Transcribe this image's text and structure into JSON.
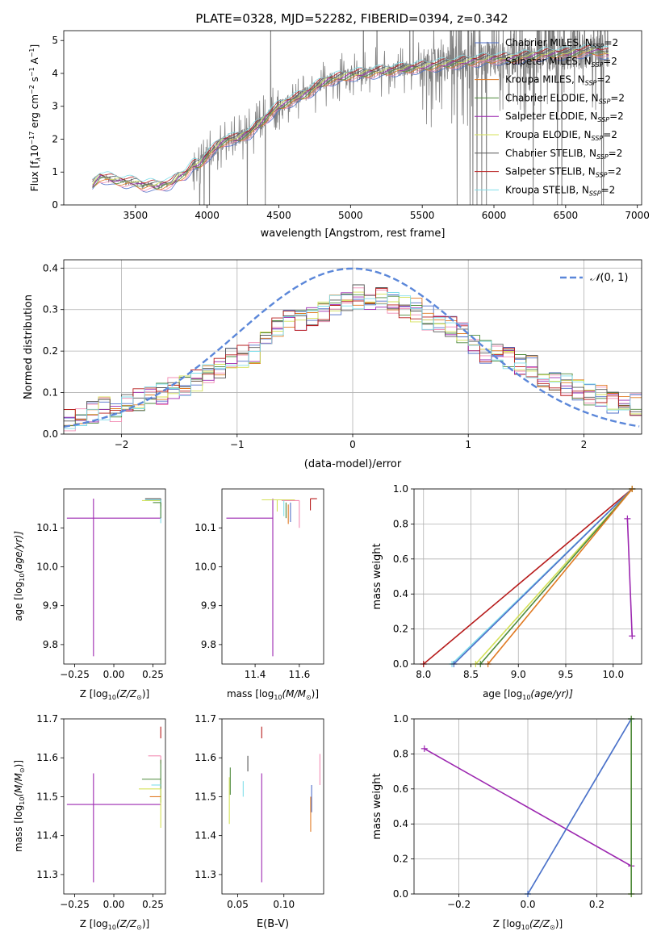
{
  "figure": {
    "title": "PLATE=0328, MJD=52282, FIBERID=0394, z=0.342"
  },
  "colors": {
    "Chabrier MILES": "#4f6fc9",
    "Salpeter MILES": "#f28cb3",
    "Kroupa MILES": "#e07a22",
    "Chabrier ELODIE": "#4e8a3c",
    "Salpeter ELODIE": "#9c27b0",
    "Kroupa ELODIE": "#d4e157",
    "Chabrier STELIB": "#555555",
    "Salpeter STELIB": "#b71c1c",
    "Kroupa STELIB": "#80deea",
    "data": "#808080",
    "gaussian": "#5b87d9"
  },
  "chart_data": [
    {
      "id": "spectrum",
      "type": "line",
      "xlabel": "wavelength [Angstrom, rest frame]",
      "ylabel": "Flux [f",
      "xlim": [
        3000,
        7030
      ],
      "ylim": [
        0,
        5.3
      ],
      "xticks": [
        3500,
        4000,
        4500,
        5000,
        5500,
        6000,
        6500,
        7000
      ],
      "yticks": [
        0,
        1,
        2,
        3,
        4,
        5
      ],
      "grid": false,
      "legend_position": "top-right",
      "series": [
        {
          "name": "Chabrier MILES, N",
          "sub": "SSP",
          "sup": "=2"
        },
        {
          "name": "Salpeter MILES, N",
          "sub": "SSP",
          "sup": "=2"
        },
        {
          "name": "Kroupa MILES, N",
          "sub": "SSP",
          "sup": "=2"
        },
        {
          "name": "Chabrier ELODIE, N",
          "sub": "SSP",
          "sup": "=2"
        },
        {
          "name": "Salpeter ELODIE, N",
          "sub": "SSP",
          "sup": "=2"
        },
        {
          "name": "Kroupa ELODIE, N",
          "sub": "SSP",
          "sup": "=2"
        },
        {
          "name": "Chabrier STELIB, N",
          "sub": "SSP",
          "sup": "=2"
        },
        {
          "name": "Salpeter STELIB, N",
          "sub": "SSP",
          "sup": "=2"
        },
        {
          "name": "Kroupa STELIB, N",
          "sub": "SSP",
          "sup": "=2"
        }
      ],
      "continuum": {
        "x": [
          3200,
          3250,
          3300,
          3350,
          3400,
          3450,
          3500,
          3550,
          3600,
          3650,
          3700,
          3750,
          3800,
          3850,
          3900,
          3950,
          4000,
          4050,
          4100,
          4150,
          4200,
          4250,
          4300,
          4350,
          4400,
          4450,
          4500,
          4550,
          4600,
          4650,
          4700,
          4750,
          4800,
          4850,
          4900,
          4950,
          5000,
          5100,
          5200,
          5300,
          5400,
          5500,
          5600,
          5700,
          5800,
          5900,
          6000,
          6100,
          6200,
          6300,
          6400,
          6500,
          6600,
          6700,
          6800
        ],
        "y": [
          0.6,
          0.85,
          0.82,
          0.75,
          0.72,
          0.7,
          0.68,
          0.6,
          0.6,
          0.58,
          0.62,
          0.65,
          0.85,
          0.95,
          1.2,
          1.25,
          1.5,
          1.7,
          1.9,
          2.0,
          2.0,
          2.1,
          2.2,
          2.4,
          2.6,
          2.8,
          3.0,
          3.1,
          3.2,
          3.3,
          3.4,
          3.55,
          3.7,
          3.8,
          3.85,
          3.9,
          3.95,
          4.0,
          4.05,
          4.1,
          4.15,
          4.2,
          4.25,
          4.3,
          4.35,
          4.4,
          4.45,
          4.45,
          4.5,
          4.55,
          4.6,
          4.6,
          4.65,
          4.7,
          4.6
        ]
      }
    },
    {
      "id": "residuals",
      "type": "step",
      "xlabel": "(data-model)/error",
      "ylabel": "Normed distribution",
      "xlim": [
        -2.5,
        2.5
      ],
      "ylim": [
        0,
        0.42
      ],
      "xticks": [
        -2,
        -1,
        0,
        1,
        2
      ],
      "yticks": [
        0.0,
        0.1,
        0.2,
        0.3,
        0.4
      ],
      "grid": true,
      "legend_position": "top-right",
      "gaussian_label": "(0, 1)",
      "approx_hist": {
        "bins": [
          -2.5,
          -2.4,
          -2.3,
          -2.2,
          -2.1,
          -2.0,
          -1.9,
          -1.8,
          -1.7,
          -1.6,
          -1.5,
          -1.4,
          -1.3,
          -1.2,
          -1.1,
          -1.0,
          -0.9,
          -0.8,
          -0.7,
          -0.6,
          -0.5,
          -0.4,
          -0.3,
          -0.2,
          -0.1,
          0.0,
          0.1,
          0.2,
          0.3,
          0.4,
          0.5,
          0.6,
          0.7,
          0.8,
          0.9,
          1.0,
          1.1,
          1.2,
          1.3,
          1.4,
          1.5,
          1.6,
          1.7,
          1.8,
          1.9,
          2.0,
          2.1,
          2.2,
          2.3,
          2.4
        ],
        "values": [
          0.03,
          0.035,
          0.05,
          0.06,
          0.055,
          0.07,
          0.08,
          0.09,
          0.1,
          0.11,
          0.12,
          0.13,
          0.15,
          0.16,
          0.18,
          0.19,
          0.2,
          0.24,
          0.26,
          0.27,
          0.28,
          0.29,
          0.3,
          0.31,
          0.32,
          0.33,
          0.32,
          0.33,
          0.32,
          0.31,
          0.3,
          0.28,
          0.27,
          0.26,
          0.24,
          0.22,
          0.2,
          0.19,
          0.18,
          0.17,
          0.16,
          0.14,
          0.13,
          0.12,
          0.11,
          0.1,
          0.09,
          0.08,
          0.07,
          0.07
        ]
      }
    },
    {
      "id": "age-vs-Z",
      "type": "errorbar",
      "xlabel": "Z [log",
      "ylabel": "age  [log",
      "xlim": [
        -0.32,
        0.33
      ],
      "ylim": [
        9.75,
        10.2
      ],
      "xticks": [
        -0.25,
        0.0,
        0.25
      ],
      "yticks": [
        9.8,
        9.9,
        10.0,
        10.1
      ],
      "points": [
        {
          "model": "Salpeter ELODIE",
          "x": -0.13,
          "xerr": [
            0.17,
            0.43
          ],
          "y": 10.125,
          "yerr": [
            0.355,
            0.05
          ]
        },
        {
          "model": "Kroupa ELODIE",
          "x": 0.3,
          "xerr": [
            0.12,
            0.0
          ],
          "y": 10.17,
          "yerr": [
            0.02,
            0.0
          ]
        },
        {
          "model": "Chabrier STELIB",
          "x": 0.3,
          "xerr": [
            0.1,
            0.0
          ],
          "y": 10.175,
          "yerr": [
            0.02,
            0.0
          ]
        },
        {
          "model": "Kroupa STELIB",
          "x": 0.3,
          "xerr": [
            0.1,
            0.0
          ],
          "y": 10.172,
          "yerr": [
            0.06,
            0.0
          ]
        },
        {
          "model": "Chabrier ELODIE",
          "x": 0.3,
          "xerr": [
            0.05,
            0.0
          ],
          "y": 10.165,
          "yerr": [
            0.04,
            0.0
          ]
        }
      ]
    },
    {
      "id": "age-vs-mass",
      "type": "errorbar",
      "xlabel": "mass [log",
      "ylabel": "",
      "xlim": [
        11.25,
        11.71
      ],
      "ylim": [
        9.75,
        10.2
      ],
      "xticks": [
        11.4,
        11.6
      ],
      "yticks": [
        9.8,
        9.9,
        10.0,
        10.1
      ],
      "points": [
        {
          "model": "Salpeter ELODIE",
          "x": 11.48,
          "xerr": [
            0.21,
            0.0
          ],
          "y": 10.125,
          "yerr": [
            0.355,
            0.05
          ]
        },
        {
          "model": "Kroupa ELODIE",
          "x": 11.5,
          "xerr": [
            0.07,
            0.08
          ],
          "y": 10.172,
          "yerr": [
            0.03,
            0.0
          ]
        },
        {
          "model": "Salpeter STELIB",
          "x": 11.65,
          "xerr": [
            0.0,
            0.03
          ],
          "y": 10.175,
          "yerr": [
            0.03,
            0.0
          ]
        },
        {
          "model": "Salpeter MILES",
          "x": 11.6,
          "xerr": [
            0.08,
            0.0
          ],
          "y": 10.17,
          "yerr": [
            0.07,
            0.0
          ]
        },
        {
          "model": "Kroupa MILES",
          "x": 11.55,
          "xerr": [
            0.0,
            0.0
          ],
          "y": 10.16,
          "yerr": [
            0.05,
            0.0
          ]
        },
        {
          "model": "Chabrier MILES",
          "x": 11.56,
          "xerr": [
            0.0,
            0.0
          ],
          "y": 10.165,
          "yerr": [
            0.05,
            0.0
          ]
        },
        {
          "model": "Kroupa STELIB",
          "x": 11.53,
          "xerr": [
            0.0,
            0.0
          ],
          "y": 10.17,
          "yerr": [
            0.04,
            0.0
          ]
        },
        {
          "model": "Chabrier ELODIE",
          "x": 11.54,
          "xerr": [
            0.0,
            0.0
          ],
          "y": 10.165,
          "yerr": [
            0.04,
            0.0
          ]
        }
      ]
    },
    {
      "id": "weight-vs-age",
      "type": "line",
      "xlabel": "age  [log",
      "ylabel": "mass weight",
      "xlim": [
        7.9,
        10.3
      ],
      "ylim": [
        0.0,
        1.0
      ],
      "xticks": [
        8.0,
        8.5,
        9.0,
        9.5,
        10.0
      ],
      "yticks": [
        0.0,
        0.2,
        0.4,
        0.6,
        0.8,
        1.0
      ],
      "grid": true,
      "series": [
        {
          "model": "Salpeter STELIB",
          "x": [
            8.0,
            10.2
          ],
          "y": [
            0.0,
            1.0
          ]
        },
        {
          "model": "Kroupa STELIB",
          "x": [
            8.3,
            10.2
          ],
          "y": [
            0.0,
            1.0
          ]
        },
        {
          "model": "Chabrier MILES",
          "x": [
            8.32,
            10.2
          ],
          "y": [
            0.0,
            1.0
          ]
        },
        {
          "model": "Kroupa ELODIE",
          "x": [
            8.55,
            10.2
          ],
          "y": [
            0.0,
            1.0
          ]
        },
        {
          "model": "Chabrier ELODIE",
          "x": [
            8.6,
            10.2
          ],
          "y": [
            0.0,
            1.0
          ]
        },
        {
          "model": "Kroupa MILES",
          "x": [
            8.68,
            10.2
          ],
          "y": [
            0.0,
            1.0
          ]
        },
        {
          "model": "Salpeter ELODIE",
          "x": [
            10.15,
            10.2
          ],
          "y": [
            0.83,
            0.16
          ]
        }
      ]
    },
    {
      "id": "mass-vs-Z",
      "type": "errorbar",
      "xlabel": "Z [log",
      "ylabel": "mass [log",
      "xlim": [
        -0.32,
        0.33
      ],
      "ylim": [
        11.25,
        11.7
      ],
      "xticks": [
        -0.25,
        0.0,
        0.25
      ],
      "yticks": [
        11.3,
        11.4,
        11.5,
        11.6,
        11.7
      ],
      "points": [
        {
          "model": "Salpeter ELODIE",
          "x": -0.13,
          "xerr": [
            0.17,
            0.43
          ],
          "y": 11.48,
          "yerr": [
            0.2,
            0.08
          ]
        },
        {
          "model": "Salpeter STELIB",
          "x": 0.3,
          "xerr": [
            0.0,
            0.0
          ],
          "y": 11.665,
          "yerr": [
            0.015,
            0.015
          ]
        },
        {
          "model": "Salpeter MILES",
          "x": 0.3,
          "xerr": [
            0.08,
            0.0
          ],
          "y": 11.605,
          "yerr": [
            0.02,
            0.0
          ]
        },
        {
          "model": "Chabrier ELODIE",
          "x": 0.3,
          "xerr": [
            0.12,
            0.0
          ],
          "y": 11.545,
          "yerr": [
            0.06,
            0.05
          ]
        },
        {
          "model": "Kroupa STELIB",
          "x": 0.3,
          "xerr": [
            0.06,
            0.0
          ],
          "y": 11.53,
          "yerr": [
            0.0,
            0.0
          ]
        },
        {
          "model": "Kroupa ELODIE",
          "x": 0.3,
          "xerr": [
            0.14,
            0.0
          ],
          "y": 11.52,
          "yerr": [
            0.1,
            0.0
          ]
        },
        {
          "model": "Kroupa MILES",
          "x": 0.3,
          "xerr": [
            0.07,
            0.0
          ],
          "y": 11.5,
          "yerr": [
            0.0,
            0.0
          ]
        }
      ]
    },
    {
      "id": "mass-vs-EBV",
      "type": "errorbar",
      "xlabel": "E(B-V)",
      "ylabel": "",
      "xlim": [
        0.033,
        0.143
      ],
      "ylim": [
        11.25,
        11.7
      ],
      "xticks": [
        0.05,
        0.1
      ],
      "yticks": [
        11.3,
        11.4,
        11.5,
        11.6,
        11.7
      ],
      "points": [
        {
          "model": "Salpeter ELODIE",
          "x": 0.076,
          "y": 11.48,
          "yerr": [
            0.2,
            0.08
          ]
        },
        {
          "model": "Salpeter STELIB",
          "x": 0.076,
          "y": 11.665,
          "yerr": [
            0.015,
            0.015
          ]
        },
        {
          "model": "Chabrier STELIB",
          "x": 0.061,
          "y": 11.585,
          "yerr": [
            0.02,
            0.02
          ]
        },
        {
          "model": "Kroupa STELIB",
          "x": 0.056,
          "y": 11.52,
          "yerr": [
            0.02,
            0.02
          ]
        },
        {
          "model": "Kroupa ELODIE",
          "x": 0.041,
          "y": 11.5,
          "yerr": [
            0.07,
            0.05
          ]
        },
        {
          "model": "Chabrier ELODIE",
          "x": 0.042,
          "y": 11.545,
          "yerr": [
            0.04,
            0.03
          ]
        },
        {
          "model": "Salpeter MILES",
          "x": 0.139,
          "y": 11.57,
          "yerr": [
            0.04,
            0.04
          ]
        },
        {
          "model": "Kroupa MILES",
          "x": 0.129,
          "y": 11.46,
          "yerr": [
            0.05,
            0.04
          ]
        },
        {
          "model": "Chabrier MILES",
          "x": 0.13,
          "y": 11.49,
          "yerr": [
            0.03,
            0.04
          ]
        }
      ]
    },
    {
      "id": "weight-vs-Z",
      "type": "line",
      "xlabel": "Z [log",
      "ylabel": "mass weight",
      "xlim": [
        -0.33,
        0.33
      ],
      "ylim": [
        0.0,
        1.0
      ],
      "xticks": [
        -0.2,
        0.0,
        0.2
      ],
      "yticks": [
        0.0,
        0.2,
        0.4,
        0.6,
        0.8,
        1.0
      ],
      "grid": true,
      "series": [
        {
          "model": "Salpeter ELODIE",
          "x": [
            -0.3,
            0.3
          ],
          "y": [
            0.83,
            0.16
          ]
        },
        {
          "model": "Kroupa STELIB",
          "x": [
            0.0,
            0.3
          ],
          "y": [
            0.0,
            1.0
          ]
        },
        {
          "model": "Chabrier MILES",
          "x": [
            0.0,
            0.3
          ],
          "y": [
            0.0,
            1.0
          ]
        },
        {
          "model": "Kroupa ELODIE",
          "x": [
            0.3,
            0.3
          ],
          "y": [
            0.0,
            1.0
          ]
        },
        {
          "model": "Chabrier ELODIE",
          "x": [
            0.3,
            0.3
          ],
          "y": [
            0.0,
            1.0
          ]
        }
      ]
    }
  ],
  "labels": {
    "spec_ylabel_unit": "10",
    "spec_ylabel_exp": "−17",
    "spec_ylabel_tail": " erg cm",
    "spec_ylabel_exp2": "−2",
    "spec_ylabel_s": " s",
    "spec_ylabel_exp3": "−1",
    "spec_ylabel_A": " A",
    "spec_ylabel_exp4": "−1",
    "spec_ylabel_end": "]",
    "spec_ylabel_lambda": "λ",
    "gaussian_symbol": "𝒩",
    "log_sub": "10",
    "z_over": "(Z/Z",
    "z_sun": "⊙",
    "z_close": ")]",
    "mass_over": "(M/M",
    "age_over": "(age/yr)]"
  }
}
